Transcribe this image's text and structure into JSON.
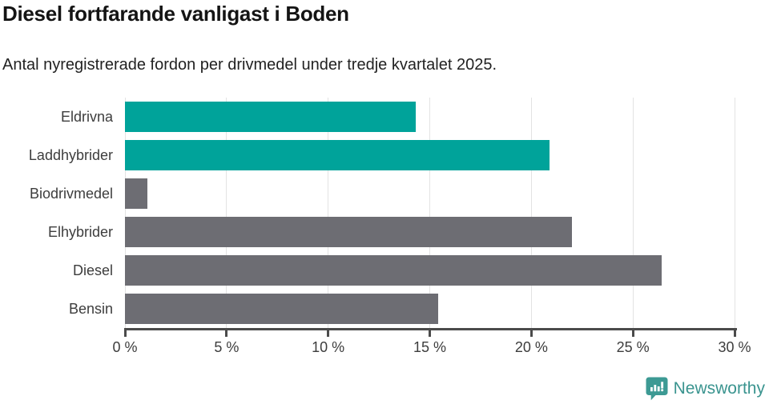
{
  "header": {
    "title": "Diesel fortfarande vanligast i Boden",
    "subtitle": "Antal nyregistrerade fordon per drivmedel under tredje kvartalet 2025."
  },
  "chart_data": {
    "type": "bar",
    "orientation": "horizontal",
    "title": "Diesel fortfarande vanligast i Boden",
    "subtitle": "Antal nyregistrerade fordon per drivmedel under tredje kvartalet 2025.",
    "categories": [
      "Eldrivna",
      "Laddhybrider",
      "Biodrivmedel",
      "Elhybrider",
      "Diesel",
      "Bensin"
    ],
    "values": [
      14.3,
      20.9,
      1.1,
      22,
      26.4,
      15.4
    ],
    "unit": "%",
    "xlim": [
      0,
      30
    ],
    "x_ticks": [
      0,
      5,
      10,
      15,
      20,
      25,
      30
    ],
    "x_tick_labels": [
      "0 %",
      "5 %",
      "10 %",
      "15 %",
      "20 %",
      "25 %",
      "30 %"
    ],
    "grid": "vertical-gridlines",
    "legend": "none",
    "bar_colors": [
      "#00a39a",
      "#00a39a",
      "#6d6d73",
      "#6d6d73",
      "#6d6d73",
      "#6d6d73"
    ],
    "highlight_color": "#00a39a",
    "default_color": "#6d6d73"
  },
  "footer": {
    "brand": "Newsworthy",
    "logo_icon": "bar-chart-speech-bubble-icon",
    "brand_color": "#3a948f"
  },
  "colors": {
    "background": "#ffffff",
    "grid": "#e3e3e3",
    "axis": "#4b4b4b",
    "text": "#3d3d3d"
  }
}
